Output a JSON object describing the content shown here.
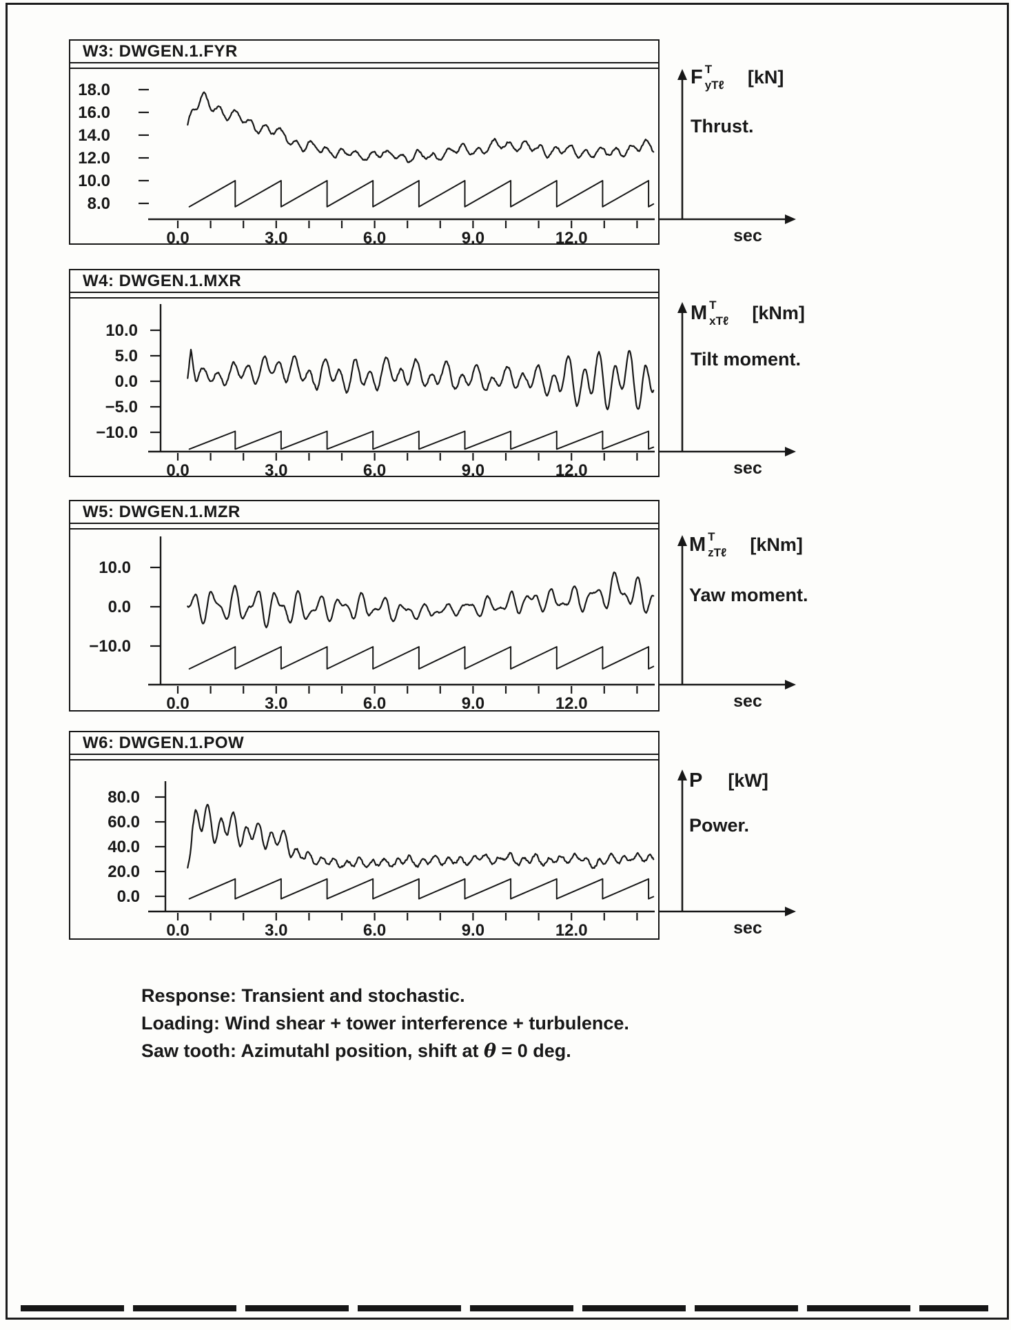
{
  "page": {
    "captions": {
      "line1": "Response: Transient and stochastic.",
      "line2": "Loading: Wind shear + tower interference + turbulence.",
      "line3_pre": "Saw tooth: Azimutahl position, shift at ",
      "line3_theta": "θ",
      "line3_post": " = 0 deg."
    }
  },
  "chart_data": [
    {
      "type": "line",
      "window_title": "W3: DWGEN.1.FYR",
      "x_axis": {
        "unit_label": "sec",
        "t_min": 0,
        "t_max": 14.5,
        "minor_tick_step": 1,
        "major_ticks": [
          {
            "t": 0,
            "label": "0.0"
          },
          {
            "t": 3,
            "label": "3.0"
          },
          {
            "t": 6,
            "label": "6.0"
          },
          {
            "t": 9,
            "label": "9.0"
          },
          {
            "t": 12,
            "label": "12.0"
          }
        ]
      },
      "y_axis": {
        "ticks": [
          {
            "v": 18,
            "label": "18.0"
          },
          {
            "v": 16,
            "label": "16.0"
          },
          {
            "v": 14,
            "label": "14.0"
          },
          {
            "v": 12,
            "label": "12.0"
          },
          {
            "v": 10,
            "label": "10.0"
          },
          {
            "v": 8,
            "label": "8.0"
          }
        ]
      },
      "ylim": [
        6.6,
        19.4
      ],
      "xlim": [
        -0.9,
        14.55
      ],
      "right_annotation": {
        "symbol_base": "F",
        "symbol_sup": "T",
        "symbol_sub": "yTℓ",
        "unit": "[kN]",
        "description": "Thrust."
      },
      "series": [
        {
          "name": "response",
          "kind": "stochastic",
          "t_start": 0.3,
          "t_end": 14.5,
          "freq": 2.15,
          "freq2": 0.9,
          "noise": 0.18,
          "seed": 11,
          "mean_points": [
            [
              0.3,
              14.8
            ],
            [
              0.45,
              16.3
            ],
            [
              0.7,
              17.0
            ],
            [
              1.0,
              16.6
            ],
            [
              1.4,
              16.2
            ],
            [
              1.8,
              15.6
            ],
            [
              2.2,
              15.0
            ],
            [
              2.6,
              14.6
            ],
            [
              3.0,
              14.2
            ],
            [
              3.4,
              13.7
            ],
            [
              3.8,
              13.2
            ],
            [
              4.2,
              12.9
            ],
            [
              4.6,
              12.6
            ],
            [
              5.0,
              12.5
            ],
            [
              5.5,
              12.3
            ],
            [
              6.0,
              12.3
            ],
            [
              6.5,
              12.2
            ],
            [
              7.0,
              12.2
            ],
            [
              7.5,
              12.3
            ],
            [
              8.0,
              12.5
            ],
            [
              8.5,
              12.7
            ],
            [
              9.0,
              12.9
            ],
            [
              9.5,
              13.1
            ],
            [
              10.0,
              13.2
            ],
            [
              10.5,
              13.1
            ],
            [
              11.0,
              12.9
            ],
            [
              11.5,
              12.8
            ],
            [
              12.0,
              12.7
            ],
            [
              12.5,
              12.5
            ],
            [
              13.0,
              12.5
            ],
            [
              13.5,
              12.7
            ],
            [
              14.0,
              12.8
            ],
            [
              14.5,
              12.9
            ]
          ],
          "amp_points": [
            [
              0.3,
              0.6
            ],
            [
              0.7,
              0.85
            ],
            [
              1.5,
              0.75
            ],
            [
              2.5,
              0.65
            ],
            [
              4.0,
              0.6
            ],
            [
              6.0,
              0.5
            ],
            [
              8.0,
              0.5
            ],
            [
              10.0,
              0.6
            ],
            [
              12.0,
              0.6
            ],
            [
              14.5,
              0.6
            ]
          ]
        },
        {
          "name": "azimuth-sawtooth",
          "kind": "sawtooth",
          "t_start": 0.35,
          "t_end": 14.5,
          "period": 1.4,
          "y_base": 7.7,
          "y_top": 10.0
        }
      ]
    },
    {
      "type": "line",
      "window_title": "W4: DWGEN.1.MXR",
      "x_axis": {
        "unit_label": "sec",
        "t_min": 0,
        "t_max": 14.5,
        "minor_tick_step": 1,
        "major_ticks": [
          {
            "t": 0,
            "label": "0.0"
          },
          {
            "t": 3,
            "label": "3.0"
          },
          {
            "t": 6,
            "label": "6.0"
          },
          {
            "t": 9,
            "label": "9.0"
          },
          {
            "t": 12,
            "label": "12.0"
          }
        ]
      },
      "y_axis": {
        "ticks": [
          {
            "v": 10,
            "label": "10.0"
          },
          {
            "v": 5,
            "label": "5.0"
          },
          {
            "v": 0,
            "label": "0.0"
          },
          {
            "v": -5,
            "label": "−5.0"
          },
          {
            "v": -10,
            "label": "−10.0"
          }
        ]
      },
      "ylim": [
        -13.8,
        15.3
      ],
      "xlim": [
        -0.9,
        14.55
      ],
      "right_annotation": {
        "symbol_base": "M",
        "symbol_sup": "T",
        "symbol_sub": "xTℓ",
        "unit": "[kNm]",
        "description": "Tilt moment."
      },
      "series": [
        {
          "name": "response",
          "kind": "stochastic",
          "t_start": 0.3,
          "t_end": 14.5,
          "freq": 2.15,
          "freq2": 1.1,
          "noise": 0.5,
          "seed": 22,
          "mean_points": [
            [
              0.3,
              0.5
            ],
            [
              0.4,
              6.5
            ],
            [
              0.55,
              2.0
            ],
            [
              0.8,
              1.5
            ],
            [
              1.5,
              2.0
            ],
            [
              2.5,
              2.2
            ],
            [
              3.5,
              2.5
            ],
            [
              4.5,
              1.0
            ],
            [
              5.5,
              1.0
            ],
            [
              6.5,
              1.5
            ],
            [
              7.5,
              1.0
            ],
            [
              8.5,
              0.8
            ],
            [
              9.5,
              0.5
            ],
            [
              10.5,
              0.3
            ],
            [
              11.5,
              0.0
            ],
            [
              12.5,
              0.0
            ],
            [
              13.5,
              0.0
            ],
            [
              14.5,
              0.5
            ]
          ],
          "amp_points": [
            [
              0.3,
              0.5
            ],
            [
              0.6,
              1.8
            ],
            [
              1.2,
              2.2
            ],
            [
              2.0,
              2.5
            ],
            [
              3.0,
              3.0
            ],
            [
              3.6,
              3.2
            ],
            [
              4.5,
              3.0
            ],
            [
              5.2,
              3.6
            ],
            [
              6.0,
              3.4
            ],
            [
              7.0,
              3.0
            ],
            [
              8.0,
              2.8
            ],
            [
              9.0,
              2.8
            ],
            [
              10.0,
              2.6
            ],
            [
              11.0,
              3.0
            ],
            [
              11.8,
              5.0
            ],
            [
              12.6,
              6.0
            ],
            [
              13.4,
              6.5
            ],
            [
              14.0,
              6.5
            ],
            [
              14.5,
              6.8
            ]
          ]
        },
        {
          "name": "azimuth-sawtooth",
          "kind": "sawtooth",
          "t_start": 0.35,
          "t_end": 14.5,
          "period": 1.4,
          "y_base": -13.3,
          "y_top": -9.8
        }
      ]
    },
    {
      "type": "line",
      "window_title": "W5: DWGEN.1.MZR",
      "x_axis": {
        "unit_label": "sec",
        "t_min": 0,
        "t_max": 14.5,
        "minor_tick_step": 1,
        "major_ticks": [
          {
            "t": 0,
            "label": "0.0"
          },
          {
            "t": 3,
            "label": "3.0"
          },
          {
            "t": 6,
            "label": "6.0"
          },
          {
            "t": 9,
            "label": "9.0"
          },
          {
            "t": 12,
            "label": "12.0"
          }
        ]
      },
      "y_axis": {
        "ticks": [
          {
            "v": 10,
            "label": "10.0"
          },
          {
            "v": 0,
            "label": "0.0"
          },
          {
            "v": -10,
            "label": "−10.0"
          }
        ]
      },
      "ylim": [
        -19.8,
        17.9
      ],
      "xlim": [
        -0.9,
        14.55
      ],
      "right_annotation": {
        "symbol_base": "M",
        "symbol_sup": "T",
        "symbol_sub": "zTℓ",
        "unit": "[kNm]",
        "description": "Yaw moment."
      },
      "series": [
        {
          "name": "response",
          "kind": "stochastic",
          "t_start": 0.3,
          "t_end": 14.5,
          "freq": 1.55,
          "freq2": 2.6,
          "noise": 0.4,
          "seed": 33,
          "mean_points": [
            [
              0.3,
              0
            ],
            [
              1,
              0
            ],
            [
              2,
              0
            ],
            [
              3,
              0
            ],
            [
              4,
              -0.5
            ],
            [
              5,
              0
            ],
            [
              6,
              -0.5
            ],
            [
              7,
              -1
            ],
            [
              8,
              -1.5
            ],
            [
              9,
              -0.5
            ],
            [
              10,
              0.5
            ],
            [
              11,
              1.5
            ],
            [
              12,
              2
            ],
            [
              12.8,
              3
            ],
            [
              13.5,
              4.5
            ],
            [
              14,
              3
            ],
            [
              14.5,
              2
            ]
          ],
          "amp_points": [
            [
              0.3,
              3.5
            ],
            [
              1.0,
              5.0
            ],
            [
              2.0,
              5.0
            ],
            [
              3.0,
              5.5
            ],
            [
              4.0,
              4.0
            ],
            [
              5.0,
              3.5
            ],
            [
              6.0,
              3.8
            ],
            [
              7.0,
              2.5
            ],
            [
              7.8,
              2.0
            ],
            [
              8.6,
              1.8
            ],
            [
              9.4,
              2.5
            ],
            [
              10.2,
              3.0
            ],
            [
              11.0,
              3.2
            ],
            [
              12.0,
              3.5
            ],
            [
              13.0,
              4.0
            ],
            [
              13.6,
              6.0
            ],
            [
              14.2,
              4.5
            ],
            [
              14.5,
              4.0
            ]
          ]
        },
        {
          "name": "azimuth-sawtooth",
          "kind": "sawtooth",
          "t_start": 0.35,
          "t_end": 14.5,
          "period": 1.4,
          "y_base": -15.8,
          "y_top": -10.2
        }
      ]
    },
    {
      "type": "line",
      "window_title": "W6: DWGEN.1.POW",
      "x_axis": {
        "unit_label": "sec",
        "t_min": 0,
        "t_max": 14.5,
        "minor_tick_step": 1,
        "major_ticks": [
          {
            "t": 0,
            "label": "0.0"
          },
          {
            "t": 3,
            "label": "3.0"
          },
          {
            "t": 6,
            "label": "6.0"
          },
          {
            "t": 9,
            "label": "9.0"
          },
          {
            "t": 12,
            "label": "12.0"
          }
        ]
      },
      "y_axis": {
        "ticks": [
          {
            "v": 80,
            "label": "80.0"
          },
          {
            "v": 60,
            "label": "60.0"
          },
          {
            "v": 40,
            "label": "40.0"
          },
          {
            "v": 20,
            "label": "20.0"
          },
          {
            "v": 0,
            "label": "0.0"
          }
        ]
      },
      "ylim": [
        -12.2,
        91.7
      ],
      "xlim": [
        -0.9,
        14.55
      ],
      "right_annotation": {
        "symbol_base": "P",
        "symbol_sup": "",
        "symbol_sub": "",
        "unit": "[kW]",
        "description": "Power."
      },
      "series": [
        {
          "name": "response",
          "kind": "stochastic",
          "t_start": 0.3,
          "t_end": 14.5,
          "freq": 2.6,
          "freq2": 1.3,
          "noise": 2.0,
          "seed": 44,
          "mean_points": [
            [
              0.3,
              28
            ],
            [
              0.45,
              62
            ],
            [
              0.7,
              60
            ],
            [
              1.0,
              58
            ],
            [
              1.5,
              56
            ],
            [
              2.0,
              52
            ],
            [
              2.5,
              50
            ],
            [
              3.0,
              46
            ],
            [
              3.3,
              42
            ],
            [
              3.6,
              36
            ],
            [
              4.0,
              31
            ],
            [
              4.5,
              28
            ],
            [
              5.0,
              27
            ],
            [
              5.5,
              25
            ],
            [
              6.0,
              26
            ],
            [
              6.5,
              27
            ],
            [
              7.0,
              27
            ],
            [
              7.5,
              28
            ],
            [
              8.0,
              28
            ],
            [
              8.5,
              29
            ],
            [
              9.0,
              30
            ],
            [
              9.5,
              31
            ],
            [
              10.0,
              32
            ],
            [
              10.5,
              30
            ],
            [
              11.0,
              29
            ],
            [
              11.5,
              30
            ],
            [
              12.0,
              31
            ],
            [
              12.5,
              30
            ],
            [
              13.0,
              29
            ],
            [
              13.5,
              30
            ],
            [
              14.0,
              31
            ],
            [
              14.5,
              30
            ]
          ],
          "amp_points": [
            [
              0.3,
              8
            ],
            [
              0.5,
              22
            ],
            [
              1.0,
              16
            ],
            [
              1.5,
              14
            ],
            [
              2.0,
              13
            ],
            [
              2.5,
              12
            ],
            [
              3.0,
              11
            ],
            [
              3.5,
              9
            ],
            [
              4.0,
              6
            ],
            [
              4.5,
              5
            ],
            [
              5.0,
              4.5
            ],
            [
              6.0,
              4
            ],
            [
              7.0,
              4
            ],
            [
              8.0,
              4
            ],
            [
              9.0,
              4.5
            ],
            [
              10.0,
              5
            ],
            [
              11.0,
              4.5
            ],
            [
              12.0,
              4.5
            ],
            [
              13.0,
              4
            ],
            [
              14.0,
              4
            ],
            [
              14.5,
              4
            ]
          ]
        },
        {
          "name": "azimuth-sawtooth",
          "kind": "sawtooth",
          "t_start": 0.35,
          "t_end": 14.5,
          "period": 1.4,
          "y_base": -2,
          "y_top": 14
        }
      ]
    }
  ]
}
